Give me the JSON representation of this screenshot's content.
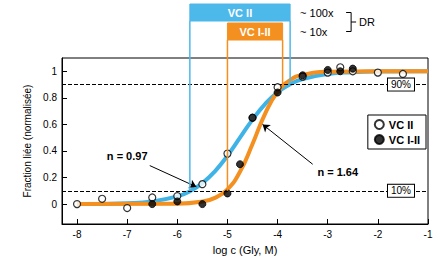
{
  "chart_data": {
    "type": "scatter",
    "x_label": "log c (Gly, M)",
    "y_label": "Fraction liée (normalisée)",
    "xlim": [
      -8.3,
      -1
    ],
    "xticks": [
      -8,
      -7,
      -6,
      -5,
      -4,
      -3,
      -2,
      -1
    ],
    "ylim": [
      -0.15,
      1.1
    ],
    "yticks": [
      0,
      0.2,
      0.4,
      0.6,
      0.8,
      1
    ],
    "grid": false,
    "legend": "right",
    "series": [
      {
        "name": "VC II",
        "marker": "open",
        "color": "#000000",
        "x": [
          -8,
          -7.5,
          -7,
          -6.5,
          -6,
          -5.5,
          -5,
          -4.5,
          -4,
          -3.5,
          -3,
          -2.75,
          -2.5,
          -2,
          -1.5
        ],
        "values": [
          0.0,
          0.04,
          -0.03,
          0.05,
          0.06,
          0.15,
          0.38,
          0.65,
          0.88,
          0.96,
          0.99,
          1.03,
          1.0,
          0.99,
          0.98
        ],
        "fit_color": "#3fb3e6",
        "fit_x": [
          -8,
          -7,
          -6.5,
          -6,
          -5.75,
          -5.5,
          -5.25,
          -5,
          -4.75,
          -4.5,
          -4.25,
          -4,
          -3.75,
          -3.5,
          -3,
          -2.5,
          -2,
          -1
        ],
        "fit_values": [
          0.0,
          0.007,
          0.02,
          0.058,
          0.097,
          0.158,
          0.247,
          0.364,
          0.5,
          0.636,
          0.753,
          0.842,
          0.903,
          0.942,
          0.98,
          0.993,
          0.998,
          1.0
        ]
      },
      {
        "name": "VC I-II",
        "marker": "filled",
        "color": "#000000",
        "x": [
          -6.5,
          -6,
          -5.5,
          -5,
          -4.75,
          -4.5,
          -4,
          -3.5,
          -3,
          -2.75,
          -2.5
        ],
        "values": [
          0.0,
          0.02,
          0.0,
          0.08,
          0.3,
          0.65,
          0.84,
          0.97,
          1.01,
          1.0,
          1.02
        ],
        "fit_color": "#f39020",
        "fit_x": [
          -8,
          -6,
          -5.5,
          -5.25,
          -5,
          -4.75,
          -4.5,
          -4.25,
          -4,
          -3.75,
          -3.5,
          -3,
          -2,
          -1
        ],
        "fit_values": [
          0.0,
          0.003,
          0.019,
          0.047,
          0.111,
          0.244,
          0.453,
          0.68,
          0.845,
          0.934,
          0.973,
          0.996,
          1.0,
          1.0
        ]
      }
    ],
    "hlines": [
      {
        "y": 0.9,
        "label": "90%"
      },
      {
        "y": 0.1,
        "label": "10%"
      }
    ],
    "ranges": [
      {
        "label": "VC II",
        "from": -5.75,
        "to": -3.75,
        "color": "#4db8ea",
        "dr_label": "~ 100x"
      },
      {
        "label": "VC I-II",
        "from": -5.0,
        "to": -3.9,
        "color": "#f39020",
        "dr_label": "~ 10x"
      }
    ],
    "dr_title": "DR",
    "annotations": [
      {
        "text": "n = 0.97",
        "x": -7.0,
        "y": 0.36,
        "arrow_from": [
          -6.55,
          0.29
        ],
        "arrow_to": [
          -5.62,
          0.13
        ]
      },
      {
        "text": "n = 1.64",
        "x": -2.8,
        "y": 0.24,
        "arrow_from": [
          -3.3,
          0.3
        ],
        "arrow_to": [
          -4.3,
          0.6
        ]
      }
    ]
  }
}
